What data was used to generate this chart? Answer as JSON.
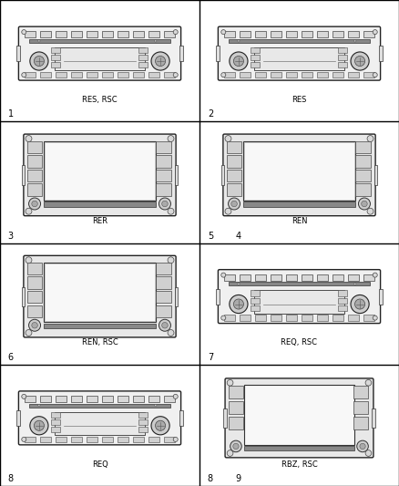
{
  "bg_color": "#ffffff",
  "grid_color": "#000000",
  "cells": [
    {
      "row": 0,
      "col": 0,
      "label": "RES, RSC",
      "num": "1",
      "extra_num": null,
      "type": "RES"
    },
    {
      "row": 0,
      "col": 1,
      "label": "RES",
      "num": "2",
      "extra_num": null,
      "type": "RES"
    },
    {
      "row": 1,
      "col": 0,
      "label": "RER",
      "num": "3",
      "extra_num": null,
      "type": "RER"
    },
    {
      "row": 1,
      "col": 1,
      "label": "REN",
      "num": "4",
      "extra_num": "5",
      "type": "RER"
    },
    {
      "row": 2,
      "col": 0,
      "label": "REN, RSC",
      "num": "6",
      "extra_num": null,
      "type": "RER"
    },
    {
      "row": 2,
      "col": 1,
      "label": "REQ, RSC",
      "num": "7",
      "extra_num": null,
      "type": "RES"
    },
    {
      "row": 3,
      "col": 0,
      "label": "REQ",
      "num": "8",
      "extra_num": null,
      "type": "RES"
    },
    {
      "row": 3,
      "col": 1,
      "label": "RBZ, RSC",
      "num": "9",
      "extra_num": "8",
      "type": "RBZ"
    }
  ],
  "num_rows": 4,
  "num_cols": 2,
  "label_fontsize": 6.0,
  "num_fontsize": 7.0
}
